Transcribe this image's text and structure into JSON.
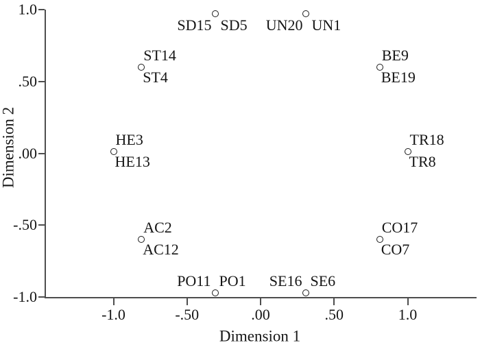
{
  "chart_data": {
    "type": "scatter",
    "title": "",
    "xlabel": "Dimension 1",
    "ylabel": "Dimension 2",
    "xlim": [
      -1.47,
      1.47
    ],
    "ylim": [
      -1.0,
      1.0
    ],
    "grid": false,
    "legend": null,
    "marker": "open-circle",
    "xticks": {
      "values": [
        -1.0,
        -0.5,
        0.0,
        0.5,
        1.0
      ],
      "labels": [
        "-1.0",
        "-.50",
        ".00",
        ".50",
        "1.0"
      ]
    },
    "yticks": {
      "values": [
        1.0,
        0.5,
        0.0,
        -0.5,
        -1.0
      ],
      "labels": [
        "1.0",
        ".50",
        ".00",
        "-.50",
        "-1.0"
      ]
    },
    "points": [
      {
        "x": -0.31,
        "y": 0.97,
        "labels": [
          "SD15",
          "SD5"
        ],
        "label_layout": "flank-below"
      },
      {
        "x": 0.31,
        "y": 0.97,
        "labels": [
          "UN20",
          "UN1"
        ],
        "label_layout": "flank-below"
      },
      {
        "x": -0.81,
        "y": 0.6,
        "labels": [
          "ST14",
          "ST4"
        ],
        "label_layout": "above-below"
      },
      {
        "x": 0.81,
        "y": 0.6,
        "labels": [
          "BE9",
          "BE19"
        ],
        "label_layout": "above-below"
      },
      {
        "x": -1.0,
        "y": 0.01,
        "labels": [
          "HE3",
          "HE13"
        ],
        "label_layout": "above-below"
      },
      {
        "x": 1.0,
        "y": 0.01,
        "labels": [
          "TR18",
          "TR8"
        ],
        "label_layout": "above-below"
      },
      {
        "x": -0.81,
        "y": -0.6,
        "labels": [
          "AC2",
          "AC12"
        ],
        "label_layout": "above-below"
      },
      {
        "x": 0.81,
        "y": -0.6,
        "labels": [
          "CO17",
          "CO7"
        ],
        "label_layout": "above-below"
      },
      {
        "x": -0.31,
        "y": -0.97,
        "labels": [
          "PO11",
          "PO1"
        ],
        "label_layout": "flank-above"
      },
      {
        "x": 0.31,
        "y": -0.97,
        "labels": [
          "SE16",
          "SE6"
        ],
        "label_layout": "flank-above"
      }
    ],
    "colors": {
      "background": "#ffffff",
      "text": "#151515",
      "axis": "#4d4d4d",
      "marker_stroke": "#1a1a1a",
      "marker_fill": "#ffffff"
    }
  }
}
